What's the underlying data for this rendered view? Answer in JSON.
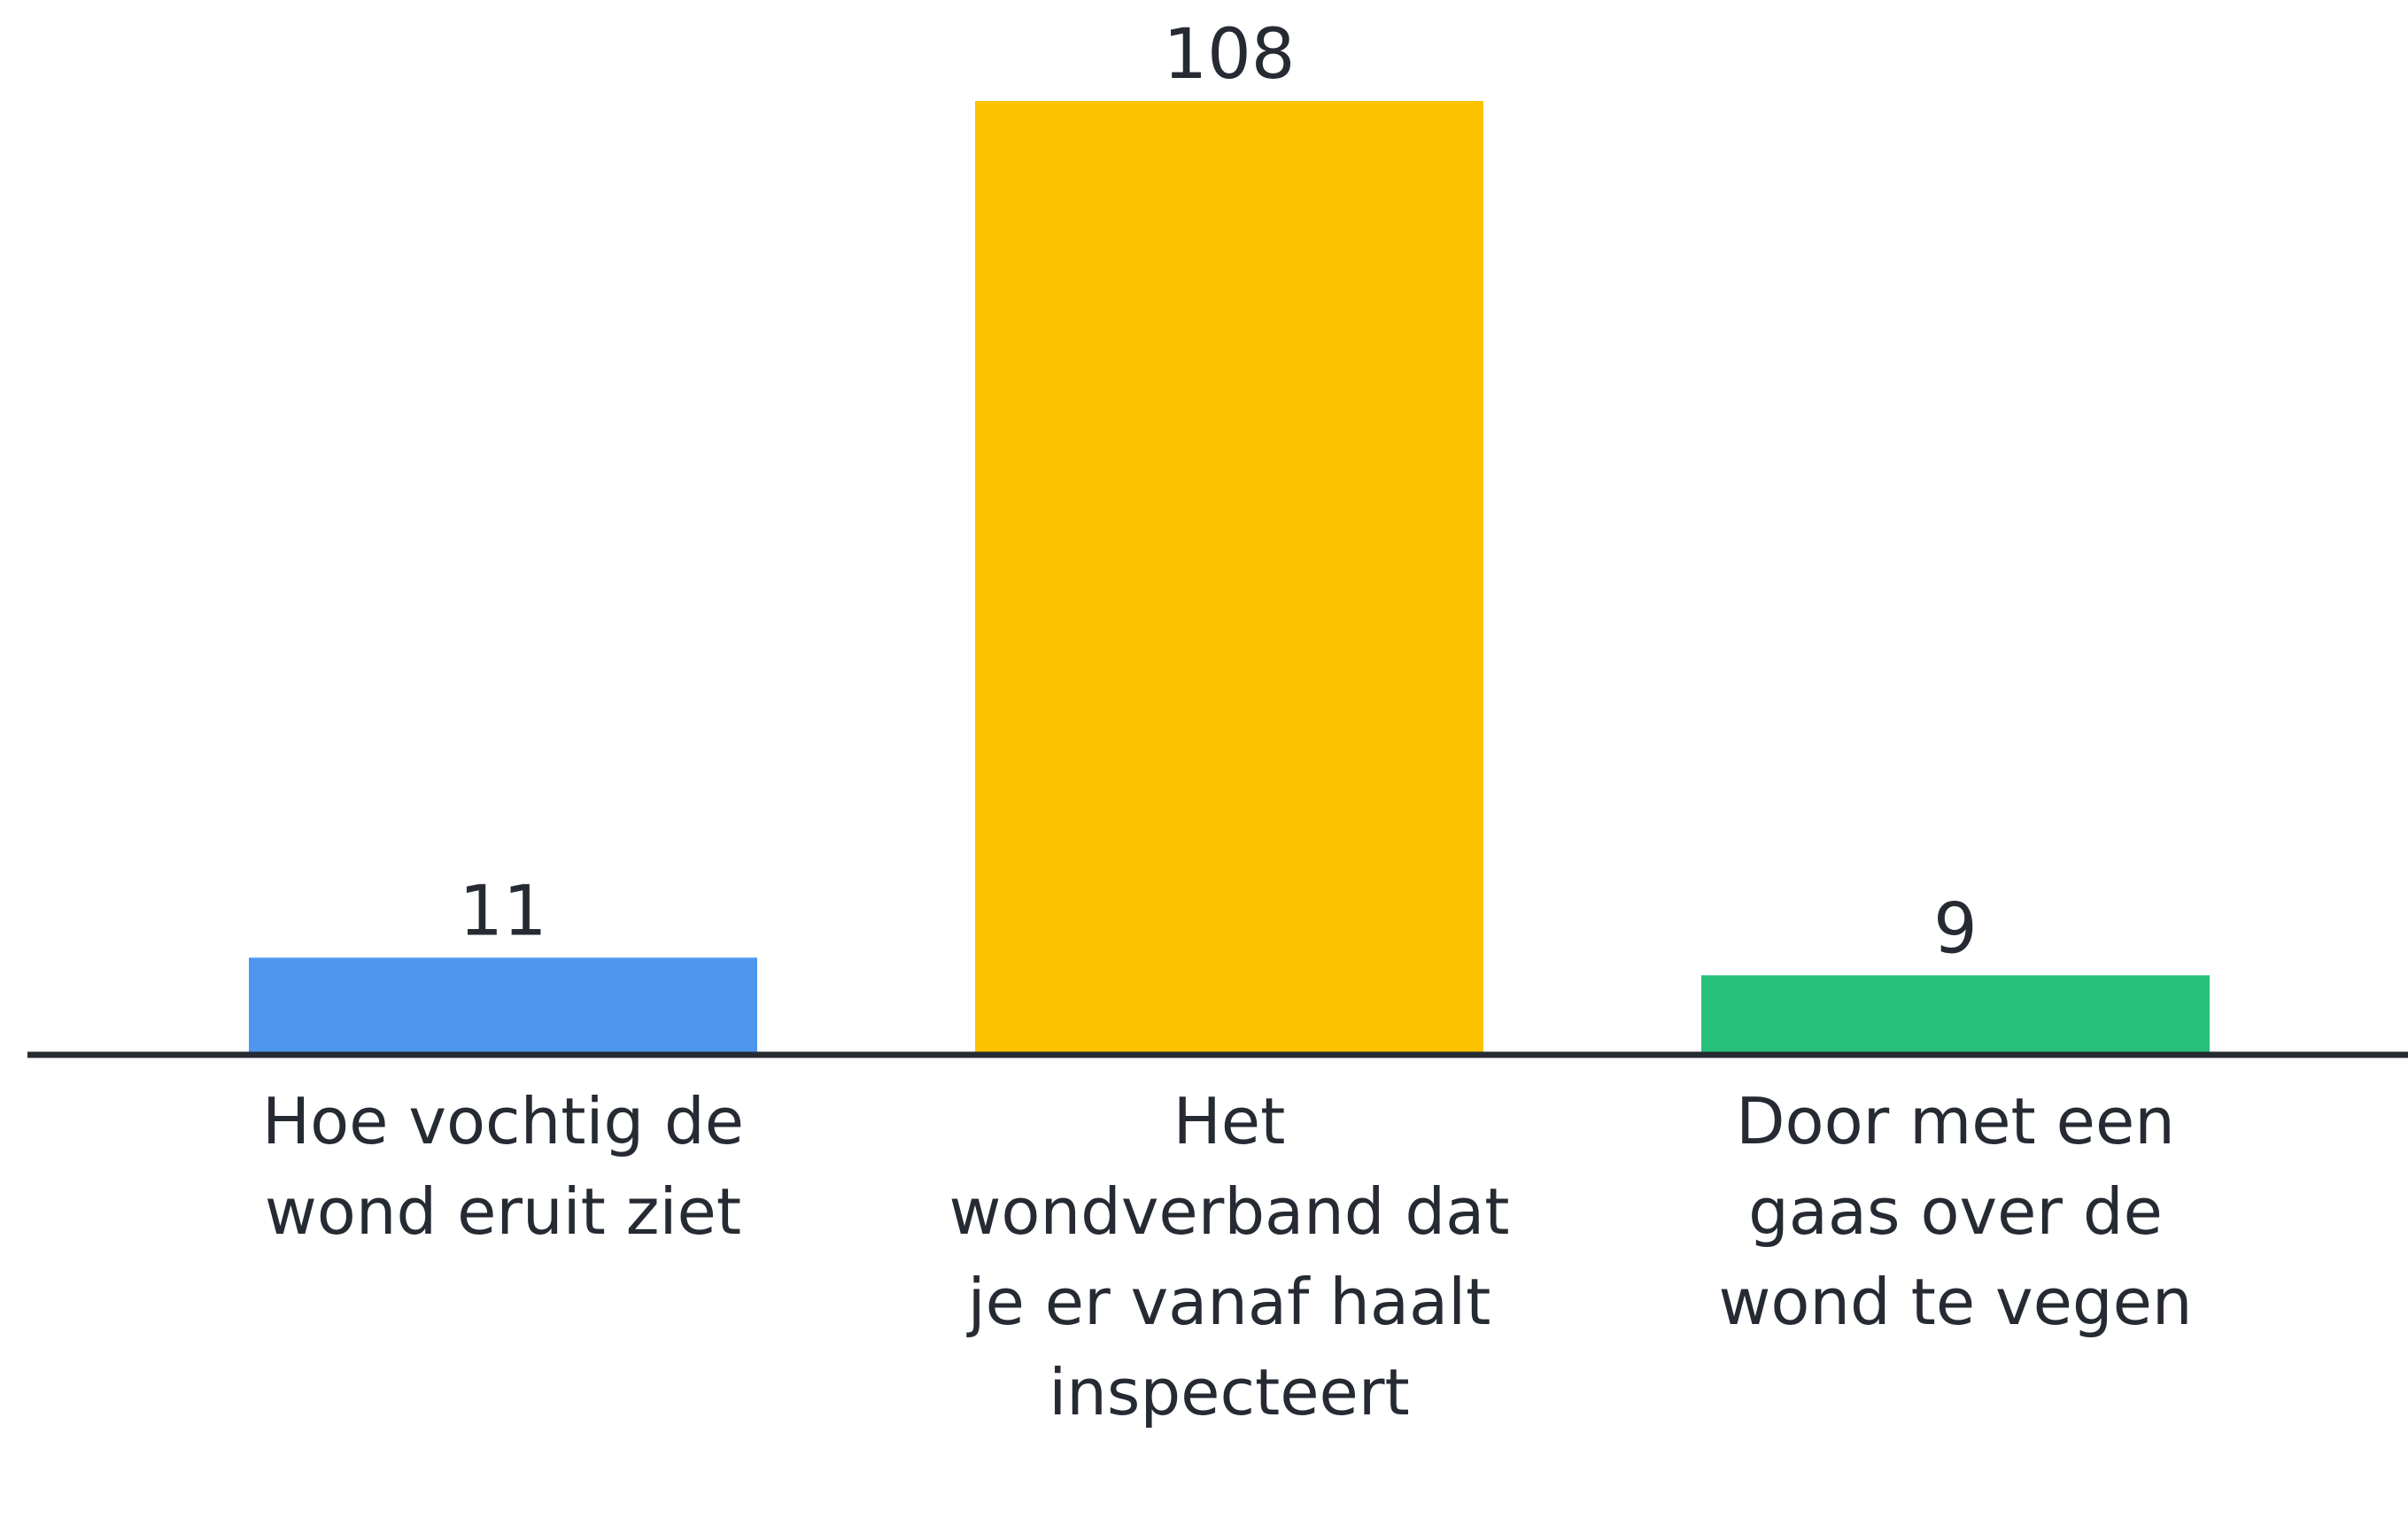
{
  "chart_data": {
    "type": "bar",
    "categories": [
      "Hoe vochtig de wond eruit ziet",
      "Het wondverband dat je er vanaf haalt inspecteert",
      "Door met een gaas over de wond te vegen"
    ],
    "values": [
      11,
      108,
      9
    ],
    "colors": [
      "#4e97ef",
      "#fdc300",
      "#27c17b"
    ]
  }
}
